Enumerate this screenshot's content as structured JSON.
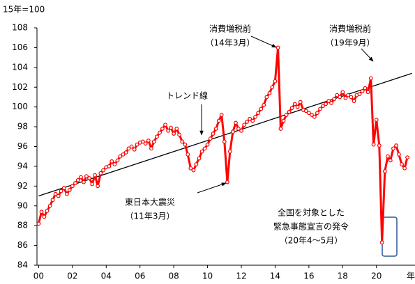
{
  "chart_data": {
    "type": "line",
    "y_label": "15年=100",
    "x_label": "年",
    "x": [
      0,
      0.17,
      0.33,
      0.5,
      0.67,
      0.83,
      1,
      1.17,
      1.33,
      1.5,
      1.67,
      1.83,
      2,
      2.17,
      2.33,
      2.5,
      2.67,
      2.83,
      3,
      3.17,
      3.33,
      3.5,
      3.67,
      3.83,
      4,
      4.17,
      4.33,
      4.5,
      4.67,
      4.83,
      5,
      5.17,
      5.33,
      5.5,
      5.67,
      5.83,
      6,
      6.17,
      6.33,
      6.5,
      6.67,
      6.83,
      7,
      7.17,
      7.33,
      7.5,
      7.67,
      7.83,
      8,
      8.17,
      8.33,
      8.5,
      8.67,
      8.83,
      9,
      9.17,
      9.33,
      9.5,
      9.67,
      9.83,
      10,
      10.17,
      10.33,
      10.5,
      10.67,
      10.83,
      11,
      11.17,
      11.33,
      11.5,
      11.67,
      11.83,
      12,
      12.17,
      12.33,
      12.5,
      12.67,
      12.83,
      13,
      13.17,
      13.33,
      13.5,
      13.67,
      13.83,
      14,
      14.17,
      14.33,
      14.5,
      14.67,
      14.83,
      15,
      15.17,
      15.33,
      15.5,
      15.67,
      15.83,
      16,
      16.17,
      16.33,
      16.5,
      16.67,
      16.83,
      17,
      17.17,
      17.33,
      17.5,
      17.67,
      17.83,
      18,
      18.17,
      18.33,
      18.5,
      18.67,
      18.83,
      19,
      19.17,
      19.33,
      19.5,
      19.67,
      19.83,
      20,
      20.17,
      20.33,
      20.5,
      20.67,
      20.83,
      21,
      21.17,
      21.33,
      21.5,
      21.67,
      21.83
    ],
    "series": [
      {
        "color": "#ff0000",
        "values": [
          88.2,
          89.4,
          88.9,
          89.5,
          90.0,
          90.6,
          91.2,
          91.0,
          91.5,
          91.8,
          91.2,
          91.6,
          92.0,
          92.3,
          92.6,
          92.9,
          92.4,
          93.0,
          92.8,
          92.2,
          93.1,
          92.0,
          93.3,
          93.6,
          93.9,
          94.0,
          94.5,
          94.2,
          94.6,
          95.0,
          95.2,
          95.4,
          95.8,
          96.0,
          95.7,
          96.2,
          96.4,
          96.5,
          96.3,
          96.6,
          95.8,
          96.5,
          97.0,
          97.4,
          97.8,
          98.2,
          97.6,
          97.9,
          97.3,
          97.8,
          97.2,
          96.5,
          96.2,
          95.2,
          93.8,
          93.6,
          94.2,
          94.8,
          95.5,
          95.8,
          96.2,
          96.8,
          97.3,
          97.8,
          98.6,
          99.2,
          96.5,
          92.4,
          95.5,
          97.5,
          98.4,
          97.8,
          97.6,
          98.2,
          98.5,
          98.8,
          98.6,
          99.0,
          99.4,
          99.8,
          100.2,
          101.0,
          101.4,
          102.0,
          102.6,
          106.0,
          97.8,
          98.6,
          99.2,
          99.5,
          99.9,
          100.3,
          100.0,
          100.5,
          99.7,
          99.6,
          99.4,
          99.2,
          99.0,
          99.4,
          99.8,
          100.1,
          100.3,
          100.6,
          100.4,
          100.8,
          101.2,
          101.0,
          101.5,
          100.9,
          101.2,
          101.0,
          100.6,
          101.2,
          101.3,
          101.6,
          101.9,
          101.5,
          102.9,
          96.2,
          98.7,
          96.1,
          86.3,
          93.5,
          95.0,
          94.6,
          95.8,
          96.1,
          95.2,
          94.2,
          93.8,
          94.9
        ]
      }
    ],
    "trend": {
      "label": "トレンド線",
      "x": [
        0,
        22.1
      ],
      "values": [
        91,
        103.4
      ],
      "color": "#000000"
    },
    "xlim": [
      -0.1,
      22.2
    ],
    "ylim": [
      84,
      108
    ],
    "xticks": [
      {
        "value": 0,
        "label": "00"
      },
      {
        "value": 2,
        "label": "02"
      },
      {
        "value": 4,
        "label": "04"
      },
      {
        "value": 6,
        "label": "06"
      },
      {
        "value": 8,
        "label": "08"
      },
      10,
      12,
      14,
      16,
      18,
      20
    ],
    "yticks": [
      84,
      86,
      88,
      90,
      92,
      94,
      96,
      98,
      100,
      102,
      104,
      106,
      108
    ],
    "grid": false,
    "annotations": [
      {
        "lines": [
          "消費増税前",
          "（14年3月）"
        ]
      },
      {
        "lines": [
          "消費増税前",
          "（19年9月）"
        ]
      },
      {
        "lines": [
          "東日本大震災",
          "（11年3月）"
        ]
      },
      {
        "lines": [
          "全国を対象とした",
          "緊急事態宣言の発令",
          "（20年4～5月）"
        ]
      }
    ]
  }
}
